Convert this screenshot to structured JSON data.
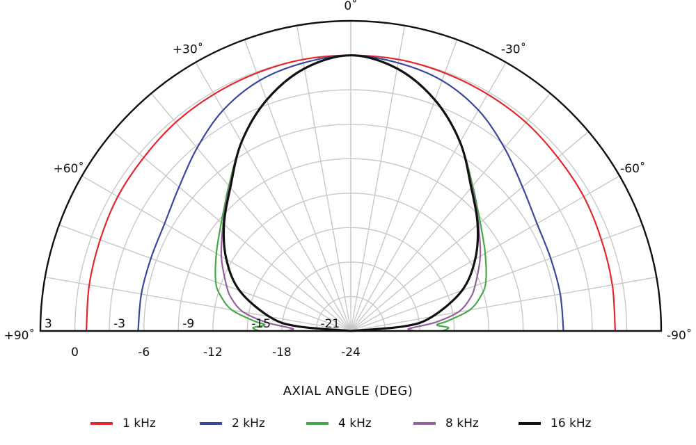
{
  "chart_data": {
    "type": "polar",
    "xlabel": "AXIAL ANGLE (DEG)",
    "angle_ticks": [
      {
        "angle": 0,
        "label": "0˚"
      },
      {
        "angle": 30,
        "label": "+30˚"
      },
      {
        "angle": 60,
        "label": "+60˚"
      },
      {
        "angle": 90,
        "label": "+90˚"
      },
      {
        "angle": -30,
        "label": "-30˚"
      },
      {
        "angle": -60,
        "label": "-60˚"
      },
      {
        "angle": -90,
        "label": "-90˚"
      }
    ],
    "radial_range": [
      -24,
      3
    ],
    "radial_grid_step": 3,
    "radial_tick_labels_left": [
      "3",
      "-3",
      "-9",
      "-15",
      "-21"
    ],
    "radial_tick_labels_bottom": [
      "0",
      "-6",
      "-12",
      "-18",
      "-24"
    ],
    "series": [
      {
        "name": "1 kHz",
        "color": "#e3262b",
        "angles": [
          0,
          10,
          20,
          30,
          40,
          50,
          60,
          70,
          80,
          90
        ],
        "values": [
          0,
          0,
          -0.1,
          -0.2,
          -0.3,
          -0.5,
          -0.6,
          -0.8,
          -0.9,
          -1
        ]
      },
      {
        "name": "2 kHz",
        "color": "#3a479c",
        "angles": [
          0,
          10,
          20,
          30,
          40,
          50,
          60,
          70,
          80,
          90
        ],
        "values": [
          0,
          -0.3,
          -0.8,
          -1.8,
          -3.2,
          -4.5,
          -5.3,
          -5.5,
          -5.5,
          -5.5
        ]
      },
      {
        "name": "4 kHz",
        "color": "#47a84a",
        "angles": [
          0,
          10,
          20,
          30,
          40,
          45,
          50,
          60,
          70,
          75,
          80,
          84,
          86,
          88,
          90
        ],
        "values": [
          0,
          -0.8,
          -2.6,
          -5,
          -7.5,
          -8.5,
          -9.3,
          -10.5,
          -11.5,
          -12.3,
          -13.5,
          -15.5,
          -16.5,
          -15.5,
          -16
        ]
      },
      {
        "name": "8 kHz",
        "color": "#95609e",
        "angles": [
          0,
          10,
          20,
          30,
          40,
          45,
          50,
          60,
          70,
          75,
          80,
          84,
          86,
          88,
          90
        ],
        "values": [
          0,
          -0.8,
          -2.6,
          -5,
          -7.6,
          -8.6,
          -9.5,
          -11,
          -12.5,
          -13.3,
          -14.5,
          -16.5,
          -18,
          -19,
          -18.5
        ]
      },
      {
        "name": "16 kHz",
        "color": "#111111",
        "angles": [
          0,
          10,
          20,
          30,
          40,
          50,
          60,
          70,
          80,
          85,
          90
        ],
        "values": [
          0,
          -0.8,
          -2.6,
          -5,
          -7.7,
          -9.6,
          -11.5,
          -13.7,
          -16.8,
          -19.3,
          -24
        ]
      }
    ],
    "legend_position": "bottom",
    "grid": true
  }
}
